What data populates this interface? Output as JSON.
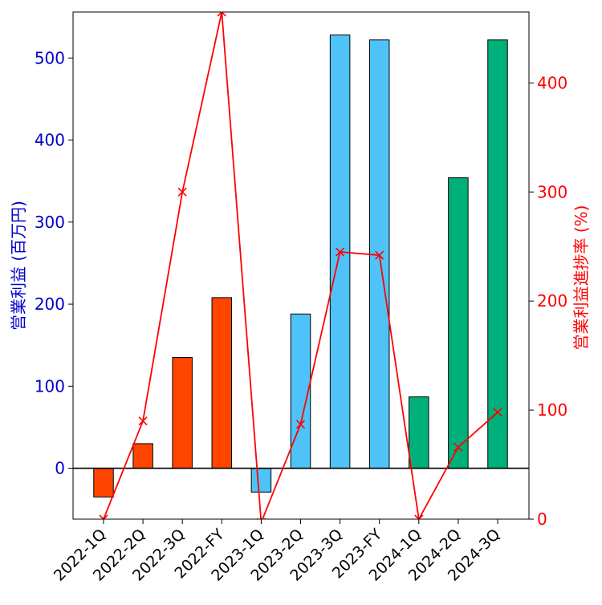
{
  "chart_data": {
    "type": "bar",
    "categories": [
      "2022-1Q",
      "2022-2Q",
      "2022-3Q",
      "2022-FY",
      "2023-1Q",
      "2023-2Q",
      "2023-3Q",
      "2023-FY",
      "2024-1Q",
      "2024-2Q",
      "2024-3Q"
    ],
    "series": [
      {
        "values": [
          -35,
          30,
          135,
          208,
          -29,
          188,
          528,
          522,
          87,
          354,
          522
        ],
        "colors": [
          "#ff4500",
          "#ff4500",
          "#ff4500",
          "#ff4500",
          "#4fc3f7",
          "#4fc3f7",
          "#4fc3f7",
          "#4fc3f7",
          "#00b07a",
          "#00b07a",
          "#00b07a"
        ],
        "axis": "left"
      },
      {
        "type": "line",
        "values": [
          0,
          90,
          300,
          465,
          -3,
          87,
          245,
          242,
          0,
          66,
          98
        ],
        "color": "#ff0000",
        "marker": "x",
        "axis": "right"
      }
    ],
    "ylabel": "営業利益 (百万円)",
    "ylabel_right": "営業利益進捗率 (%)",
    "ylim": [
      -62,
      556
    ],
    "ylim_right": [
      0,
      465
    ],
    "yticks": [
      0,
      100,
      200,
      300,
      400,
      500
    ],
    "yticks_right": [
      0,
      100,
      200,
      300,
      400
    ],
    "ylabel_color": "#0000cc",
    "ylabel_right_color": "#ff0000",
    "grid": false,
    "zero_line": true
  }
}
